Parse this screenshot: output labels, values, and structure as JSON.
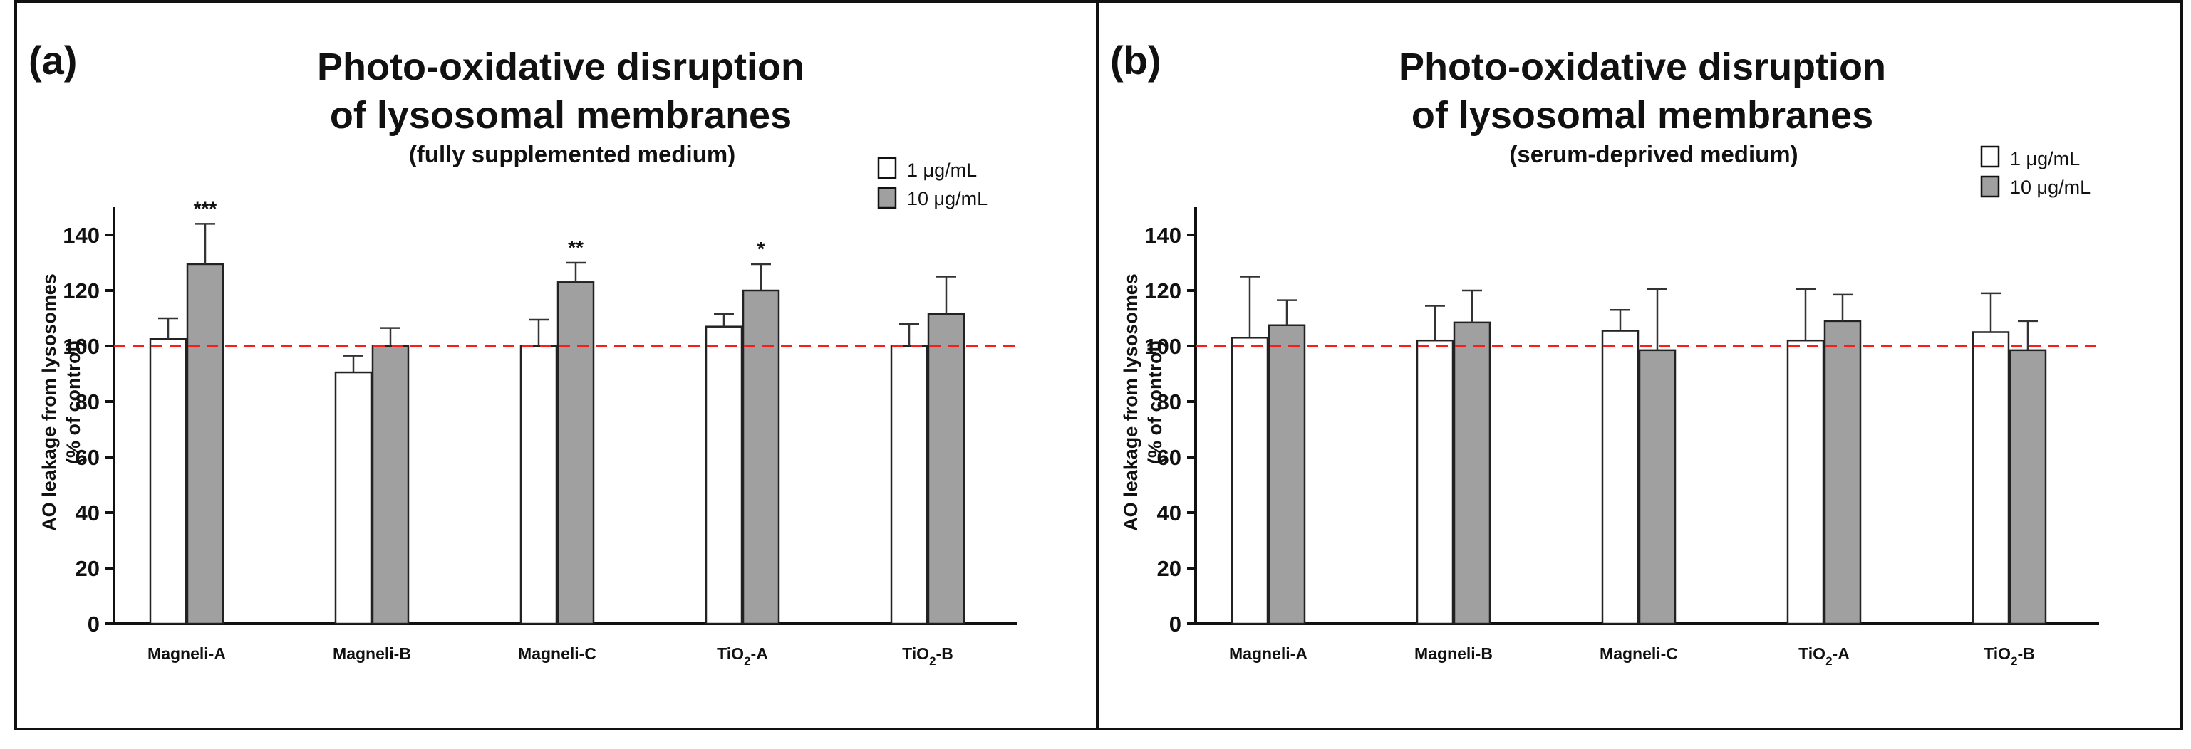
{
  "colors": {
    "series_1": "#ffffff",
    "series_2": "#a0a0a0",
    "reference_line": "#ff1a1a",
    "frame": "#111111"
  },
  "chart_data": [
    {
      "type": "bar",
      "panel_label": "(a)",
      "title_line1": "Photo-oxidative disruption",
      "title_line2": "of lysosomal membranes",
      "subtitle": "(fully supplemented medium)",
      "ylabel_line1": "AO leakage from lysosomes",
      "ylabel_line2": "(% of control)",
      "xlabel": "",
      "ylim": [
        0,
        150
      ],
      "yticks": [
        0,
        20,
        40,
        60,
        80,
        100,
        120,
        140
      ],
      "reference_line": 100,
      "legend_position": "top-right",
      "categories": [
        {
          "main": "Magneli-A",
          "sub": "",
          "suffix": ""
        },
        {
          "main": "Magneli-B",
          "sub": "",
          "suffix": ""
        },
        {
          "main": "Magneli-C",
          "sub": "",
          "suffix": ""
        },
        {
          "main": "TiO",
          "sub": "2",
          "suffix": "-A"
        },
        {
          "main": "TiO",
          "sub": "2",
          "suffix": "-B"
        }
      ],
      "series": [
        {
          "name": "1 μg/mL",
          "values": [
            102.5,
            90.5,
            100,
            107,
            100
          ],
          "errors": [
            7.5,
            6,
            9.5,
            4.5,
            8
          ]
        },
        {
          "name": "10 μg/mL",
          "values": [
            129.5,
            100,
            123,
            120,
            111.5
          ],
          "errors": [
            14.5,
            6.5,
            7,
            9.5,
            13.5
          ]
        }
      ],
      "significance": [
        "***",
        "",
        "**",
        "*",
        ""
      ]
    },
    {
      "type": "bar",
      "panel_label": "(b)",
      "title_line1": "Photo-oxidative disruption",
      "title_line2": "of lysosomal membranes",
      "subtitle": "(serum-deprived medium)",
      "ylabel_line1": "AO leakage from lysosomes",
      "ylabel_line2": "(% of control)",
      "xlabel": "",
      "ylim": [
        0,
        150
      ],
      "yticks": [
        0,
        20,
        40,
        60,
        80,
        100,
        120,
        140
      ],
      "reference_line": 100,
      "legend_position": "top-right",
      "categories": [
        {
          "main": "Magneli-A",
          "sub": "",
          "suffix": ""
        },
        {
          "main": "Magneli-B",
          "sub": "",
          "suffix": ""
        },
        {
          "main": "Magneli-C",
          "sub": "",
          "suffix": ""
        },
        {
          "main": "TiO",
          "sub": "2",
          "suffix": "-A"
        },
        {
          "main": "TiO",
          "sub": "2",
          "suffix": "-B"
        }
      ],
      "series": [
        {
          "name": "1 μg/mL",
          "values": [
            103,
            102,
            105.5,
            102,
            105
          ],
          "errors": [
            22,
            12.5,
            7.5,
            18.5,
            14
          ]
        },
        {
          "name": "10 μg/mL",
          "values": [
            107.5,
            108.5,
            98.5,
            109,
            98.5
          ],
          "errors": [
            9,
            11.5,
            22,
            9.5,
            10.5
          ]
        }
      ],
      "significance": [
        "",
        "",
        "",
        "",
        ""
      ]
    }
  ]
}
